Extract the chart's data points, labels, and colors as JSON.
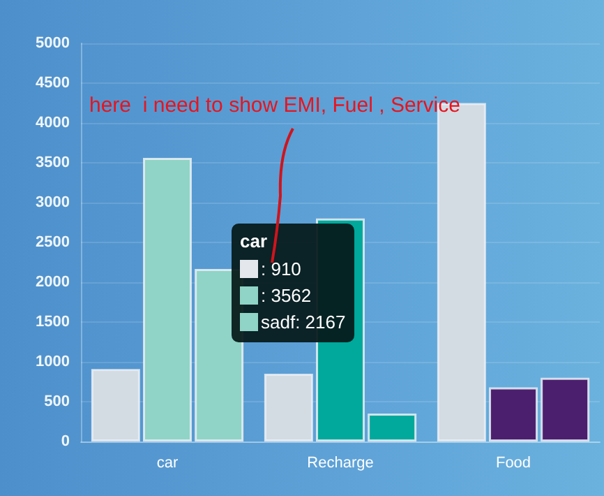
{
  "chart_data": {
    "type": "bar",
    "categories": [
      "car",
      "Recharge",
      "Food"
    ],
    "series": [
      {
        "colors": [
          "#d3dbe3",
          "#d3dbe3",
          "#d3dbe3"
        ],
        "values": [
          910,
          850,
          4250
        ]
      },
      {
        "colors": [
          "#8fd4c6",
          "#00a99c",
          "#4b1f6e"
        ],
        "values": [
          3562,
          2800,
          680
        ]
      },
      {
        "name": "sadf",
        "colors": [
          "#8fd4c6",
          "#00a99c",
          "#4b1f6e"
        ],
        "values": [
          2167,
          350,
          800
        ]
      }
    ],
    "ylim": [
      0,
      5000
    ],
    "yticks": [
      0,
      500,
      1000,
      1500,
      2000,
      2500,
      3000,
      3500,
      4000,
      4500,
      5000
    ],
    "grid": "y",
    "legend": "center",
    "annotations": [
      "here  i need to show EMI, Fuel , Service",
      "car",
      ": 910",
      ": 3562",
      ": 2167"
    ]
  }
}
